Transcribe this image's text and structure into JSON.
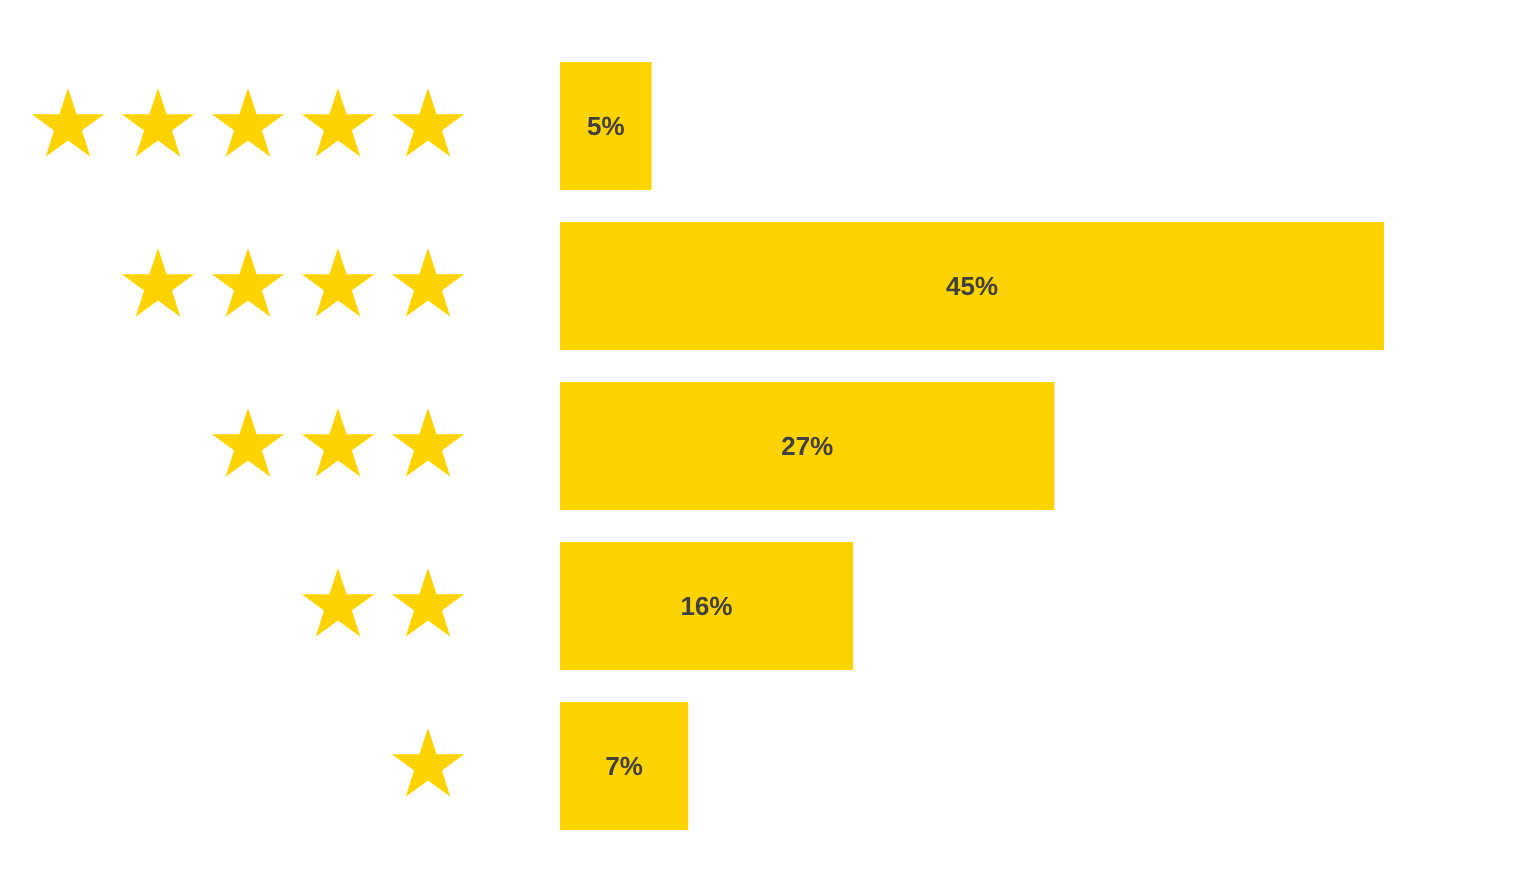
{
  "chart_data": {
    "type": "bar",
    "orientation": "horizontal",
    "categories": [
      null,
      null,
      null,
      null,
      null
    ],
    "values": [
      5,
      45,
      27,
      16,
      7
    ],
    "value_labels": [
      "5%",
      "45%",
      "27%",
      "16%",
      "7%"
    ],
    "color": "#ffd300"
  }
}
